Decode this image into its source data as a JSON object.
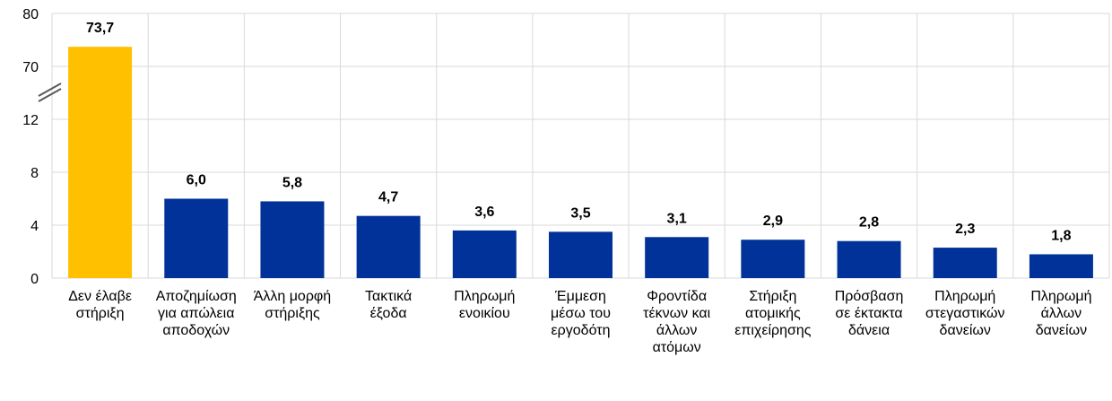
{
  "chart_data": {
    "type": "bar",
    "title": "",
    "xlabel": "",
    "ylabel": "",
    "y_axis": {
      "broken": true,
      "lower_segment": [
        0,
        12
      ],
      "upper_segment": [
        70,
        80
      ],
      "ticks": [
        "0",
        "4",
        "8",
        "12",
        "70",
        "80"
      ],
      "tick_values": [
        0,
        4,
        8,
        12,
        70,
        80
      ]
    },
    "grid": true,
    "categories": [
      [
        "Δεν έλαβε",
        "στήριξη"
      ],
      [
        "Αποζημίωση",
        "για απώλεια",
        "αποδοχών"
      ],
      [
        "Άλλη μορφή",
        "στήριξης"
      ],
      [
        "Τακτικά",
        "έξοδα"
      ],
      [
        "Πληρωμή",
        "ενοικίου"
      ],
      [
        "Έμμεση",
        "μέσω του",
        "εργοδότη"
      ],
      [
        "Φροντίδα",
        "τέκνων και",
        "άλλων",
        "ατόμων"
      ],
      [
        "Στήριξη",
        "ατομικής",
        "επιχείρησης"
      ],
      [
        "Πρόσβαση",
        "σε έκτακτα",
        "δάνεια"
      ],
      [
        "Πληρωμή",
        "στεγαστικών",
        "δανείων"
      ],
      [
        "Πληρωμή",
        "άλλων",
        "δανείων"
      ]
    ],
    "values": [
      73.7,
      6.0,
      5.8,
      4.7,
      3.6,
      3.5,
      3.1,
      2.9,
      2.8,
      2.3,
      1.8
    ],
    "data_labels": [
      "73,7",
      "6,0",
      "5,8",
      "4,7",
      "3,6",
      "3,5",
      "3,1",
      "2,9",
      "2,8",
      "2,3",
      "1,8"
    ],
    "colors": {
      "highlight": "#FFC000",
      "default": "#003299",
      "grid": "#D9D9D9",
      "axis_break": "#595959"
    },
    "highlight_index": 0
  }
}
